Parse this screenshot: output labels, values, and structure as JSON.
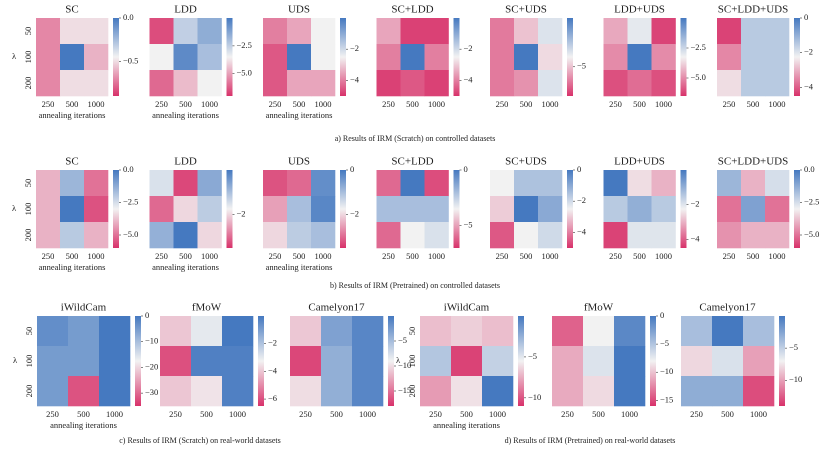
{
  "captions": [
    "a) Results of IRM (Scratch) on controlled datasets",
    "b) Results of IRM (Pretrained) on controlled datasets",
    "c) Results of IRM (Scratch) on real-world datasets",
    "d) Results of IRM (Pretrained) on real-world datasets"
  ],
  "chart_data": [
    {
      "type": "heatmap",
      "title": "SC",
      "categories": [
        250,
        500,
        1000
      ],
      "ycategories": [
        50,
        100,
        200
      ],
      "ylabel": "λ",
      "xlabel": "annealing iterations",
      "clim": [
        -0.9,
        0
      ],
      "cticks": [
        {
          "value": 0,
          "label": "0.0"
        },
        {
          "value": -0.5,
          "label": "−0.5"
        }
      ],
      "values": [
        [
          -0.7,
          -0.5,
          -0.5
        ],
        [
          -0.7,
          0,
          -0.6
        ],
        [
          -0.7,
          -0.5,
          -0.5
        ]
      ]
    },
    {
      "type": "heatmap",
      "title": "LDD",
      "categories": [
        250,
        500,
        1000
      ],
      "xlabel": "annealing iterations",
      "clim": [
        -7,
        0
      ],
      "cticks": [
        {
          "value": -2.5,
          "label": "−2.5"
        },
        {
          "value": -5,
          "label": "−5.0"
        }
      ],
      "values": [
        [
          -6.5,
          -2.5,
          -1.5
        ],
        [
          -3.5,
          -0.5,
          -2
        ],
        [
          -6,
          -4.5,
          -3.5
        ]
      ]
    },
    {
      "type": "heatmap",
      "title": "UDS",
      "categories": [
        250,
        500,
        1000
      ],
      "xlabel": "annealing iterations",
      "clim": [
        -5,
        0
      ],
      "cticks": [
        {
          "value": -2,
          "label": "−2"
        },
        {
          "value": -4,
          "label": "−4"
        }
      ],
      "values": [
        [
          -4,
          -3.5,
          -2.5
        ],
        [
          -4.5,
          0,
          -2.5
        ],
        [
          -4.5,
          -3.5,
          -3.5
        ]
      ]
    },
    {
      "type": "heatmap",
      "title": "SC+LDD",
      "categories": [
        250,
        500,
        1000
      ],
      "clim": [
        -5,
        0
      ],
      "cticks": [
        {
          "value": -2,
          "label": "−2"
        },
        {
          "value": -4,
          "label": "−4"
        }
      ],
      "values": [
        [
          -3.5,
          -4.8,
          -4.8
        ],
        [
          -4,
          0,
          -4
        ],
        [
          -4.8,
          -4.5,
          -4.8
        ]
      ]
    },
    {
      "type": "heatmap",
      "title": "SC+UDS",
      "categories": [
        250,
        500,
        1000
      ],
      "clim": [
        -8,
        0
      ],
      "cticks": [
        {
          "value": -5,
          "label": "−5"
        }
      ],
      "values": [
        [
          -6.5,
          -5,
          -3.5
        ],
        [
          -6.5,
          0,
          -4.5
        ],
        [
          -6.5,
          -6,
          -3.5
        ]
      ]
    },
    {
      "type": "heatmap",
      "title": "LDD+UDS",
      "categories": [
        250,
        500,
        1000
      ],
      "clim": [
        -6.5,
        0
      ],
      "cticks": [
        {
          "value": -2.5,
          "label": "−2.5"
        },
        {
          "value": -5,
          "label": "−5.0"
        }
      ],
      "values": [
        [
          -4.5,
          -3,
          -6.2
        ],
        [
          -5,
          0,
          -5
        ],
        [
          -6,
          -5.5,
          -6
        ]
      ]
    },
    {
      "type": "heatmap",
      "title": "SC+LDD+UDS",
      "categories": [
        250,
        500,
        1000
      ],
      "clim": [
        -4.5,
        0
      ],
      "cticks": [
        0,
        {
          "value": -2,
          "label": "−2"
        },
        {
          "value": -4,
          "label": "−4"
        }
      ],
      "values": [
        [
          -4.3,
          -1.5,
          -1.5
        ],
        [
          -3.5,
          -1.5,
          -1.5
        ],
        [
          -2.5,
          -1.5,
          -1.5
        ]
      ]
    },
    {
      "type": "heatmap",
      "title": "SC",
      "categories": [
        250,
        500,
        1000
      ],
      "ycategories": [
        50,
        100,
        200
      ],
      "ylabel": "λ",
      "xlabel": "annealing iterations",
      "clim": [
        -6,
        0
      ],
      "cticks": [
        {
          "value": 0,
          "label": "0.0"
        },
        {
          "value": -2.5,
          "label": "−2.5"
        },
        {
          "value": -5,
          "label": "−5.0"
        }
      ],
      "values": [
        [
          -4,
          -1.5,
          -5
        ],
        [
          -4,
          0,
          -5.5
        ],
        [
          -4,
          -2,
          -4
        ]
      ]
    },
    {
      "type": "heatmap",
      "title": "LDD",
      "categories": [
        250,
        500,
        1000
      ],
      "xlabel": "annealing iterations",
      "clim": [
        -3.5,
        0
      ],
      "cticks": [
        {
          "value": -2,
          "label": "−2"
        }
      ],
      "values": [
        [
          -1.5,
          -3.3,
          -0.7
        ],
        [
          -3,
          -2,
          -1.2
        ],
        [
          -0.8,
          0,
          -2
        ]
      ]
    },
    {
      "type": "heatmap",
      "title": "UDS",
      "categories": [
        250,
        500,
        1000
      ],
      "xlabel": "annealing iterations",
      "clim": [
        -3.5,
        0
      ],
      "cticks": [
        0,
        {
          "value": -2,
          "label": "−2"
        }
      ],
      "values": [
        [
          -3.2,
          -3,
          -0.3
        ],
        [
          -2.5,
          -1,
          -0.2
        ],
        [
          -2,
          -1.2,
          -1
        ]
      ]
    },
    {
      "type": "heatmap",
      "title": "SC+LDD",
      "categories": [
        250,
        500,
        1000
      ],
      "clim": [
        -7,
        0
      ],
      "cticks": [
        0,
        {
          "value": -5,
          "label": "−5"
        }
      ],
      "values": [
        [
          -6,
          0,
          -6.5
        ],
        [
          -2,
          -2,
          -2
        ],
        [
          -6,
          -3.5,
          -3
        ]
      ]
    },
    {
      "type": "heatmap",
      "title": "SC+UDS",
      "categories": [
        250,
        500,
        1000
      ],
      "clim": [
        -5,
        0
      ],
      "cticks": [
        0,
        {
          "value": -2,
          "label": "−2"
        },
        {
          "value": -4,
          "label": "−4"
        }
      ],
      "values": [
        [
          -2.5,
          -1.5,
          -1.5
        ],
        [
          -3,
          0,
          -1
        ],
        [
          -4.5,
          -2.5,
          -2
        ]
      ]
    },
    {
      "type": "heatmap",
      "title": "LDD+UDS",
      "categories": [
        250,
        500,
        1000
      ],
      "clim": [
        -4.5,
        0
      ],
      "cticks": [
        {
          "value": -2,
          "label": "−2"
        },
        {
          "value": -4,
          "label": "−4"
        }
      ],
      "values": [
        [
          0,
          -2.5,
          -3
        ],
        [
          -1.5,
          -1,
          -1.5
        ],
        [
          -4.3,
          -2,
          -2
        ]
      ]
    },
    {
      "type": "heatmap",
      "title": "SC+LDD+UDS",
      "categories": [
        250,
        500,
        1000
      ],
      "clim": [
        -6,
        0
      ],
      "cticks": [
        {
          "value": 0,
          "label": "0.0"
        },
        {
          "value": -2.5,
          "label": "−2.5"
        },
        {
          "value": -5,
          "label": "−5.0"
        }
      ],
      "values": [
        [
          -1.5,
          -4,
          -2.5
        ],
        [
          -5,
          -1,
          -5
        ],
        [
          -4.5,
          -4,
          -4
        ]
      ]
    },
    {
      "type": "heatmap",
      "title": "iWildCam",
      "categories": [
        250,
        500,
        1000
      ],
      "ycategories": [
        50,
        100,
        200
      ],
      "ylabel": "λ",
      "xlabel": "annealing iterations",
      "clim": [
        -35,
        0
      ],
      "cticks": [
        0,
        {
          "value": -10,
          "label": "−10"
        },
        {
          "value": -20,
          "label": "−20"
        },
        {
          "value": -30,
          "label": "−30"
        }
      ],
      "values": [
        [
          -3,
          -5,
          0
        ],
        [
          -5,
          -5,
          0
        ],
        [
          -5,
          -32,
          0
        ]
      ]
    },
    {
      "type": "heatmap",
      "title": "fMoW",
      "categories": [
        250,
        500,
        1000
      ],
      "clim": [
        -6.5,
        0
      ],
      "cticks": [
        {
          "value": -2,
          "label": "−2"
        },
        {
          "value": -4,
          "label": "−4"
        },
        {
          "value": -6,
          "label": "−6"
        }
      ],
      "values": [
        [
          -4,
          -3,
          0
        ],
        [
          -6,
          -0.2,
          -0.2
        ],
        [
          -4,
          -3.5,
          -0.2
        ]
      ]
    },
    {
      "type": "heatmap",
      "title": "Camelyon17",
      "categories": [
        250,
        500,
        1000
      ],
      "clim": [
        -18,
        0
      ],
      "cticks": [
        {
          "value": -5,
          "label": "−5"
        },
        {
          "value": -10,
          "label": "−10"
        },
        {
          "value": -15,
          "label": "−15"
        }
      ],
      "values": [
        [
          -11,
          -3,
          -1
        ],
        [
          -17,
          -4,
          -1
        ],
        [
          -10,
          -4,
          -1
        ]
      ]
    },
    {
      "type": "heatmap",
      "title": "iWildCam",
      "categories": [
        250,
        500,
        1000
      ],
      "ycategories": [
        50,
        100,
        200
      ],
      "ylabel": "λ",
      "xlabel": "annealing iterations",
      "clim": [
        -11,
        0
      ],
      "cticks": [
        {
          "value": -5,
          "label": "−5"
        },
        {
          "value": -10,
          "label": "−10"
        }
      ],
      "values": [
        [
          -7,
          -6.5,
          -7
        ],
        [
          -3.5,
          -10.5,
          -4
        ],
        [
          -8,
          -6,
          0
        ]
      ]
    },
    {
      "type": "heatmap",
      "title": "fMoW",
      "categories": [
        250,
        500,
        1000
      ],
      "clim": [
        -16,
        0
      ],
      "cticks": [
        0,
        {
          "value": -5,
          "label": "−5"
        },
        {
          "value": -10,
          "label": "−10"
        },
        {
          "value": -15,
          "label": "−15"
        }
      ],
      "values": [
        [
          -14,
          -8,
          -1
        ],
        [
          -11,
          -7,
          0
        ],
        [
          -11,
          -9,
          0
        ]
      ]
    },
    {
      "type": "heatmap",
      "title": "Camelyon17",
      "categories": [
        250,
        500,
        1000
      ],
      "clim": [
        -14,
        0
      ],
      "cticks": [
        {
          "value": -5,
          "label": "−5"
        },
        {
          "value": -10,
          "label": "−10"
        }
      ],
      "values": [
        [
          -4,
          0,
          -4
        ],
        [
          -8,
          -6,
          -10
        ],
        [
          -3,
          -3,
          -13
        ]
      ]
    }
  ]
}
